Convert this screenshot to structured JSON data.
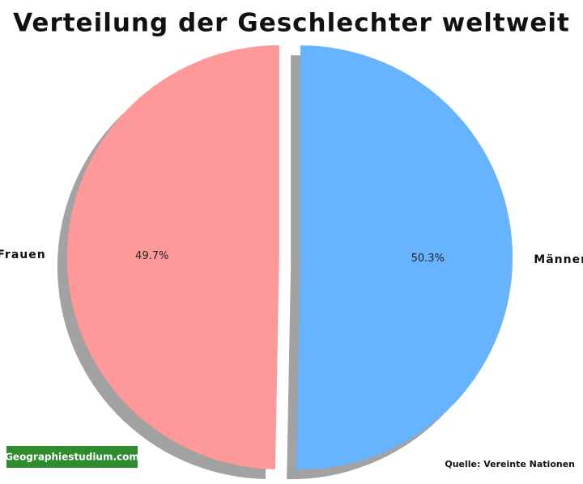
{
  "chart_data": {
    "type": "pie",
    "title": "Verteilung der Geschlechter weltweit",
    "categories": [
      "Frauen",
      "Männer"
    ],
    "values": [
      49.7,
      50.3
    ],
    "value_labels": [
      "49.7%",
      "50.3%"
    ],
    "colors": [
      "#ff9999",
      "#66b3ff"
    ],
    "start_angle": 90,
    "explode": 0.05,
    "shadow": true,
    "watermark": "Geographiestudium.com",
    "source": "Quelle: Vereinte Nationen"
  }
}
